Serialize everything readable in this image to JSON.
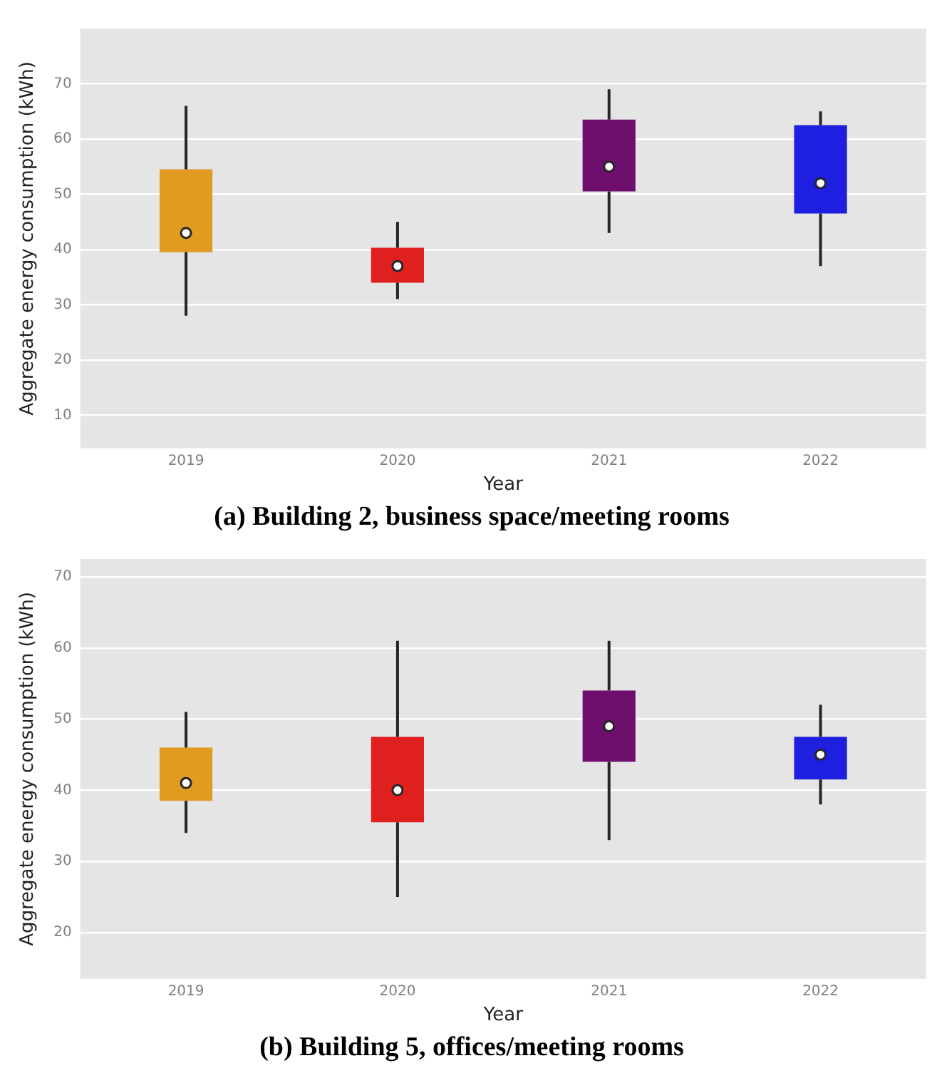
{
  "chart_data": [
    {
      "type": "box",
      "title": "(a) Building 2, business space/meeting rooms",
      "xlabel": "Year",
      "ylabel": "Aggregate energy consumption (kWh)",
      "categories": [
        "2019",
        "2020",
        "2021",
        "2022"
      ],
      "colors": [
        "#e09b20",
        "#e01f1f",
        "#6e0f6e",
        "#1f1fe0"
      ],
      "boxes": [
        {
          "low": 28,
          "q1": 39.5,
          "median": 43,
          "q3": 54.5,
          "high": 66
        },
        {
          "low": 31,
          "q1": 34,
          "median": 37,
          "q3": 40.3,
          "high": 45
        },
        {
          "low": 43,
          "q1": 50.5,
          "median": 55,
          "q3": 63.5,
          "high": 69
        },
        {
          "low": 37,
          "q1": 46.5,
          "median": 52,
          "q3": 62.5,
          "high": 65
        }
      ],
      "ylim": [
        4,
        80
      ],
      "yticks": [
        10,
        20,
        30,
        40,
        50,
        60,
        70
      ],
      "grid": "y"
    },
    {
      "type": "box",
      "title": "(b) Building 5, offices/meeting rooms",
      "xlabel": "Year",
      "ylabel": "Aggregate energy consumption (kWh)",
      "categories": [
        "2019",
        "2020",
        "2021",
        "2022"
      ],
      "colors": [
        "#e09b20",
        "#e01f1f",
        "#6e0f6e",
        "#1f1fe0"
      ],
      "boxes": [
        {
          "low": 34,
          "q1": 38.5,
          "median": 41,
          "q3": 46,
          "high": 51
        },
        {
          "low": 25,
          "q1": 35.5,
          "median": 40,
          "q3": 47.5,
          "high": 61
        },
        {
          "low": 33,
          "q1": 44,
          "median": 49,
          "q3": 54,
          "high": 61
        },
        {
          "low": 38,
          "q1": 41.5,
          "median": 45,
          "q3": 47.5,
          "high": 52
        }
      ],
      "ylim": [
        13.5,
        72.5
      ],
      "yticks": [
        20,
        30,
        40,
        50,
        60,
        70
      ],
      "grid": "y"
    }
  ]
}
